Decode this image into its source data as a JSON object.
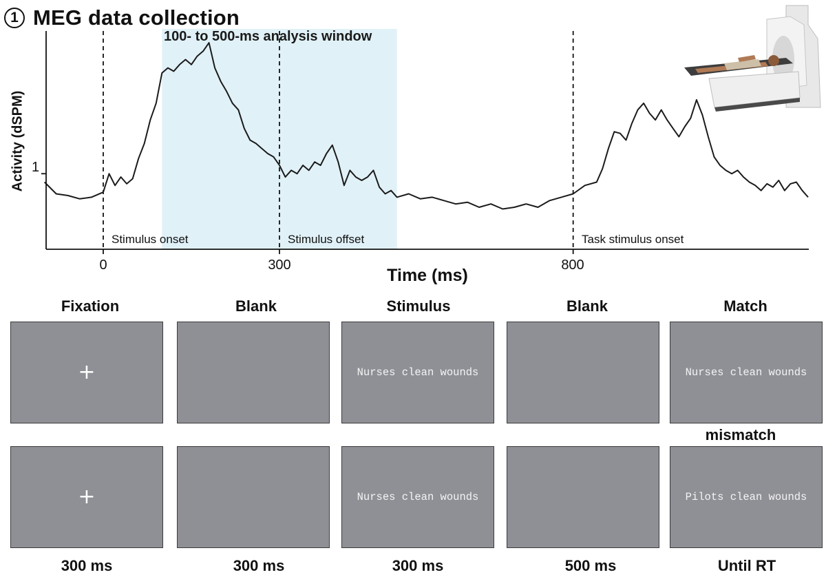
{
  "panel": {
    "number": "1",
    "title": "MEG data collection"
  },
  "chart_data": {
    "type": "line",
    "xlabel": "Time (ms)",
    "ylabel": "Activity (dSPM)",
    "xlim": [
      -100,
      1200
    ],
    "ylim": [
      0.55,
      1.85
    ],
    "xticks": [
      0,
      300,
      800
    ],
    "xtick_labels": [
      "0",
      "300",
      "800"
    ],
    "yticks": [
      1
    ],
    "ytick_labels": [
      "1"
    ],
    "grid": false,
    "analysis_window": {
      "start": 100,
      "end": 500,
      "label": "100- to 500-ms analysis window",
      "color": "#e0f1f7"
    },
    "events": [
      {
        "x": 0,
        "label": "Stimulus onset"
      },
      {
        "x": 300,
        "label": "Stimulus offset"
      },
      {
        "x": 800,
        "label": "Task stimulus onset"
      }
    ],
    "series": [
      {
        "color": "#1a1a1a",
        "x": [
          -100,
          -80,
          -60,
          -40,
          -20,
          0,
          10,
          20,
          30,
          40,
          50,
          60,
          70,
          80,
          90,
          100,
          110,
          120,
          130,
          140,
          150,
          160,
          170,
          180,
          190,
          200,
          210,
          220,
          230,
          240,
          250,
          260,
          270,
          280,
          290,
          300,
          310,
          320,
          330,
          340,
          350,
          360,
          370,
          380,
          390,
          400,
          410,
          420,
          430,
          440,
          450,
          460,
          470,
          480,
          490,
          500,
          520,
          540,
          560,
          580,
          600,
          620,
          640,
          660,
          680,
          700,
          720,
          740,
          760,
          780,
          800,
          820,
          840,
          850,
          860,
          870,
          880,
          890,
          900,
          910,
          920,
          930,
          940,
          950,
          960,
          970,
          980,
          990,
          1000,
          1010,
          1020,
          1030,
          1040,
          1050,
          1060,
          1070,
          1080,
          1090,
          1100,
          1110,
          1120,
          1130,
          1140,
          1150,
          1160,
          1170,
          1180,
          1190,
          1200
        ],
        "y": [
          0.95,
          0.88,
          0.87,
          0.85,
          0.86,
          0.89,
          1.0,
          0.93,
          0.98,
          0.94,
          0.97,
          1.09,
          1.18,
          1.32,
          1.42,
          1.6,
          1.63,
          1.61,
          1.65,
          1.68,
          1.65,
          1.7,
          1.73,
          1.78,
          1.63,
          1.55,
          1.49,
          1.42,
          1.38,
          1.27,
          1.2,
          1.18,
          1.15,
          1.12,
          1.1,
          1.05,
          0.98,
          1.02,
          1.0,
          1.05,
          1.02,
          1.07,
          1.05,
          1.12,
          1.17,
          1.07,
          0.93,
          1.02,
          0.98,
          0.96,
          0.98,
          1.02,
          0.92,
          0.88,
          0.9,
          0.86,
          0.88,
          0.85,
          0.86,
          0.84,
          0.82,
          0.83,
          0.8,
          0.82,
          0.79,
          0.8,
          0.82,
          0.8,
          0.84,
          0.86,
          0.88,
          0.93,
          0.95,
          1.03,
          1.15,
          1.25,
          1.24,
          1.2,
          1.3,
          1.38,
          1.42,
          1.36,
          1.32,
          1.38,
          1.32,
          1.27,
          1.22,
          1.28,
          1.33,
          1.44,
          1.35,
          1.22,
          1.1,
          1.05,
          1.02,
          1.0,
          1.02,
          0.98,
          0.95,
          0.93,
          0.9,
          0.94,
          0.92,
          0.96,
          0.9,
          0.94,
          0.95,
          0.9,
          0.86
        ]
      }
    ]
  },
  "trials": {
    "columns": [
      {
        "header": "Fixation",
        "duration": "300 ms",
        "top_content": "+",
        "bottom_content": "+"
      },
      {
        "header": "Blank",
        "duration": "300 ms",
        "top_content": "",
        "bottom_content": ""
      },
      {
        "header": "Stimulus",
        "duration": "300 ms",
        "top_content": "Nurses clean wounds",
        "bottom_content": "Nurses clean wounds"
      },
      {
        "header": "Blank",
        "duration": "500 ms",
        "top_content": "",
        "bottom_content": ""
      },
      {
        "header": "Match",
        "duration": "Until RT",
        "top_content": "Nurses clean wounds",
        "bottom_content": "Pilots clean wounds"
      }
    ],
    "mismatch_label": "mismatch",
    "screen_color": "#8f9096"
  }
}
